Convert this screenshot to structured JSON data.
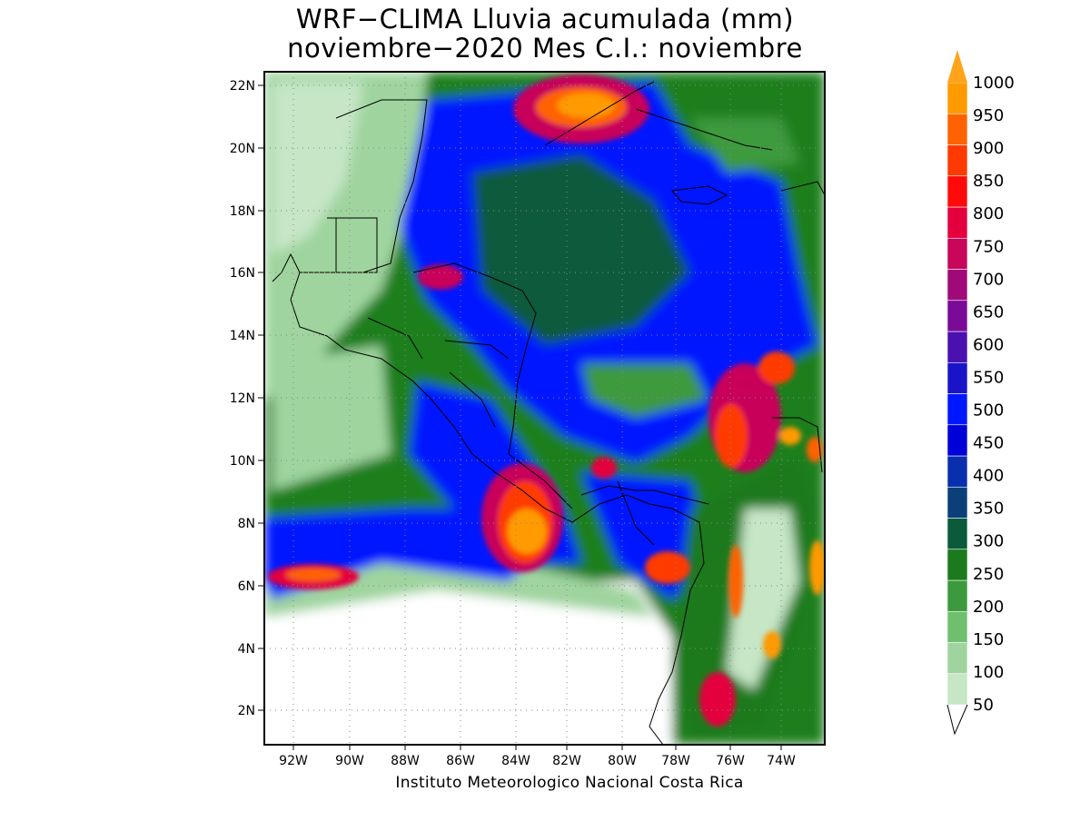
{
  "title_line1": "WRF−CLIMA Lluvia acumulada (mm)",
  "title_line2": "noviembre−2020 Mes C.I.: noviembre",
  "credit": "Instituto Meteorologico Nacional Costa Rica",
  "lon_ticks": [
    "92W",
    "90W",
    "88W",
    "86W",
    "84W",
    "82W",
    "80W",
    "78W",
    "76W",
    "74W"
  ],
  "lat_ticks": [
    "22N",
    "20N",
    "18N",
    "16N",
    "14N",
    "12N",
    "10N",
    "8N",
    "6N",
    "4N",
    "2N"
  ],
  "colorbar": {
    "labels": [
      "50",
      "100",
      "150",
      "200",
      "250",
      "300",
      "350",
      "400",
      "450",
      "500",
      "550",
      "600",
      "650",
      "700",
      "750",
      "800",
      "850",
      "900",
      "950",
      "1000"
    ],
    "colors": [
      "#c6e6c6",
      "#9fd49f",
      "#6fbf6f",
      "#3c9a3c",
      "#1b7a1b",
      "#0c5a3c",
      "#0a3f7a",
      "#0a2fae",
      "#0000d8",
      "#0018ff",
      "#1a14c8",
      "#4a10b0",
      "#7a0a98",
      "#a00a78",
      "#c8065a",
      "#e4003c",
      "#ff0a0a",
      "#ff3a00",
      "#ff6200",
      "#ff9a00"
    ],
    "arrow_color": "#ffa31a"
  }
}
